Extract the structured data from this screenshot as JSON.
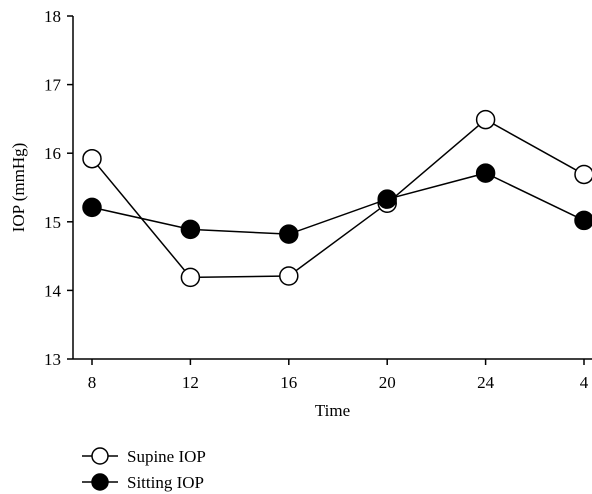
{
  "chart_data": {
    "type": "line",
    "title": "",
    "xlabel": "Time",
    "ylabel": "IOP (mmHg)",
    "categories": [
      "8",
      "12",
      "16",
      "20",
      "24",
      "4"
    ],
    "ylim": [
      13,
      18
    ],
    "yticks": [
      "13",
      "14",
      "15",
      "16",
      "17",
      "18"
    ],
    "grid": false,
    "legend_position": "bottom-left",
    "series": [
      {
        "name": "Supine IOP",
        "marker": "open-circle",
        "color": "#000000",
        "values": [
          15.92,
          14.19,
          14.21,
          15.27,
          16.49,
          15.69
        ]
      },
      {
        "name": "Sitting IOP",
        "marker": "filled-circle",
        "color": "#000000",
        "values": [
          15.21,
          14.89,
          14.82,
          15.33,
          15.71,
          15.02
        ]
      }
    ]
  }
}
